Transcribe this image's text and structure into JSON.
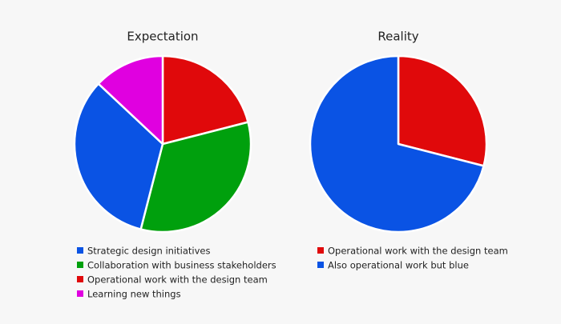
{
  "chart_data": [
    {
      "type": "pie",
      "title": "Expectation",
      "categories": [
        "Strategic design initiatives",
        "Collaboration with business stakeholders",
        "Operational work with the design team",
        "Learning new things"
      ],
      "values": [
        33,
        33,
        21,
        13
      ],
      "colors": [
        "#0a53e4",
        "#00a00d",
        "#e0090b",
        "#e000e0"
      ]
    },
    {
      "type": "pie",
      "title": "Reality",
      "categories": [
        "Operational work with the design team",
        "Also operational work but blue"
      ],
      "values": [
        29,
        71
      ],
      "colors": [
        "#e0090b",
        "#0a53e4"
      ]
    }
  ]
}
